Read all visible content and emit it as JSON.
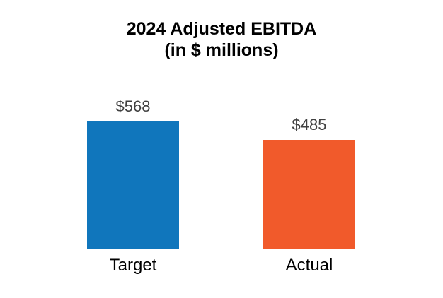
{
  "chart_data": {
    "type": "bar",
    "title": "2024 Adjusted EBITDA",
    "subtitle": "(in $ millions)",
    "categories": [
      "Target",
      "Actual"
    ],
    "values": [
      568,
      485
    ],
    "data_labels": [
      "$568",
      "$485"
    ],
    "colors": [
      "#1076BC",
      "#F15A2B"
    ],
    "series": [
      {
        "name": "Target",
        "value": 568,
        "label": "$568",
        "color": "#1076BC"
      },
      {
        "name": "Actual",
        "value": 485,
        "label": "$485",
        "color": "#F15A2B"
      }
    ],
    "xlabel": "",
    "ylabel": "",
    "baseline": 0,
    "grid": false,
    "legend": "none",
    "axes_visible": false
  },
  "colors": {
    "background": "#FFFFFF",
    "title_text": "#000000",
    "data_label_text": "#404040",
    "category_label_text": "#000000"
  }
}
